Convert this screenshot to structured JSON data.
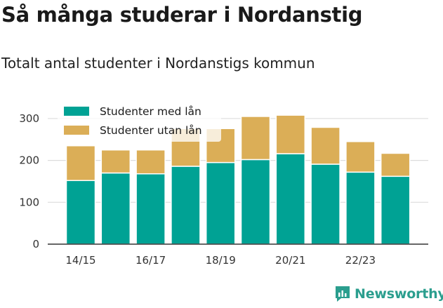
{
  "title": "Så många studerar i Nordanstig",
  "subtitle": "Totalt antal studenter i Nordanstigs kommun",
  "brand": "Newsworthy",
  "colors": {
    "with_loan": "#00a294",
    "without_loan": "#dbae57",
    "brand": "#2b9e8e"
  },
  "chart_data": {
    "type": "bar",
    "stacked": true,
    "categories": [
      "14/15",
      "15/16",
      "16/17",
      "17/18",
      "18/19",
      "19/20",
      "20/21",
      "21/22",
      "22/23",
      "23/24"
    ],
    "tick_labels": [
      "14/15",
      "16/17",
      "18/19",
      "20/21",
      "22/23"
    ],
    "series": [
      {
        "name": "Studenter med lån",
        "values": [
          152,
          170,
          168,
          186,
          195,
          202,
          216,
          191,
          172,
          162
        ]
      },
      {
        "name": "Studenter utan lån",
        "values": [
          83,
          55,
          57,
          90,
          81,
          103,
          92,
          88,
          73,
          55
        ]
      }
    ],
    "ylim": [
      0,
      320
    ],
    "yticks": [
      0,
      100,
      200,
      300
    ],
    "grid": true,
    "legend_position": "top-left"
  }
}
